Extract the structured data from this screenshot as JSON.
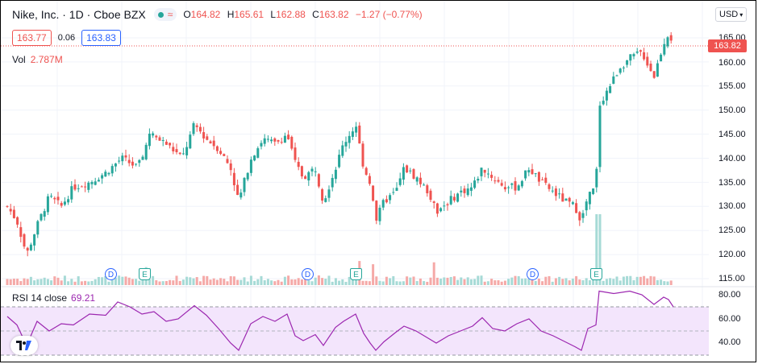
{
  "header": {
    "symbol_title": "Nike, Inc. · 1D · Cboe BZX",
    "open_label": "O",
    "open": "164.82",
    "high_label": "H",
    "high": "165.61",
    "low_label": "L",
    "low": "162.88",
    "close_label": "C",
    "close": "163.82",
    "change": "−1.27 (−0.77%)"
  },
  "quote": {
    "bid": "163.77",
    "spread": "0.06",
    "ask": "163.83"
  },
  "volume": {
    "label": "Vol",
    "value": "2.787M"
  },
  "rsi": {
    "label": "RSI 14 close",
    "value": "69.21",
    "ticks": [
      "80.00",
      "60.00",
      "40.00"
    ]
  },
  "currency": "USD",
  "last_price_tag": "163.82",
  "price_axis": {
    "ticks": [
      "165.00",
      "160.00",
      "155.00",
      "150.00",
      "145.00",
      "140.00",
      "135.00",
      "130.00",
      "125.00",
      "120.00",
      "115.00"
    ]
  },
  "events": {
    "dividend_label": "D",
    "earnings_label": "E"
  },
  "colors": {
    "up": "#26a69a",
    "down": "#ef5350",
    "rsi_line": "#9c27b0",
    "rsi_band": "#f3e5fc"
  },
  "icons": {
    "logo": "tradingview-logo-icon",
    "status": "market-status-dot-icon",
    "chevron": "chevron-down-icon"
  }
}
